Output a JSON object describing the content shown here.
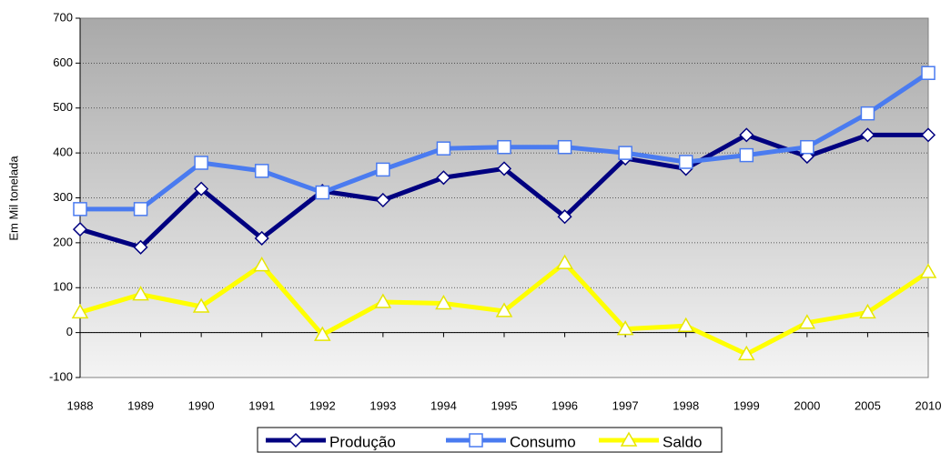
{
  "chart_data": {
    "type": "line",
    "y_label": "Em Mil tonelada",
    "categories": [
      "1988",
      "1989",
      "1990",
      "1991",
      "1992",
      "1993",
      "1994",
      "1995",
      "1996",
      "1997",
      "1998",
      "1999",
      "2000",
      "2005",
      "2010"
    ],
    "series": [
      {
        "name": "Produção",
        "color": "#000080",
        "marker": "diamond",
        "values": [
          230,
          190,
          320,
          210,
          315,
          295,
          345,
          365,
          258,
          388,
          365,
          440,
          392,
          440,
          440
        ]
      },
      {
        "name": "Consumo",
        "color": "#4a7bf0",
        "marker": "square",
        "values": [
          275,
          275,
          378,
          360,
          312,
          363,
          410,
          413,
          413,
          400,
          380,
          395,
          413,
          488,
          578
        ]
      },
      {
        "name": "Saldo",
        "color": "#ffff00",
        "marker": "triangle",
        "values": [
          45,
          85,
          58,
          150,
          -5,
          68,
          65,
          48,
          155,
          8,
          15,
          -48,
          22,
          45,
          135
        ]
      }
    ],
    "ylim": [
      -100,
      700
    ],
    "yticks": [
      -100,
      0,
      100,
      200,
      300,
      400,
      500,
      600,
      700
    ],
    "grid": true,
    "legend": "bottom"
  }
}
